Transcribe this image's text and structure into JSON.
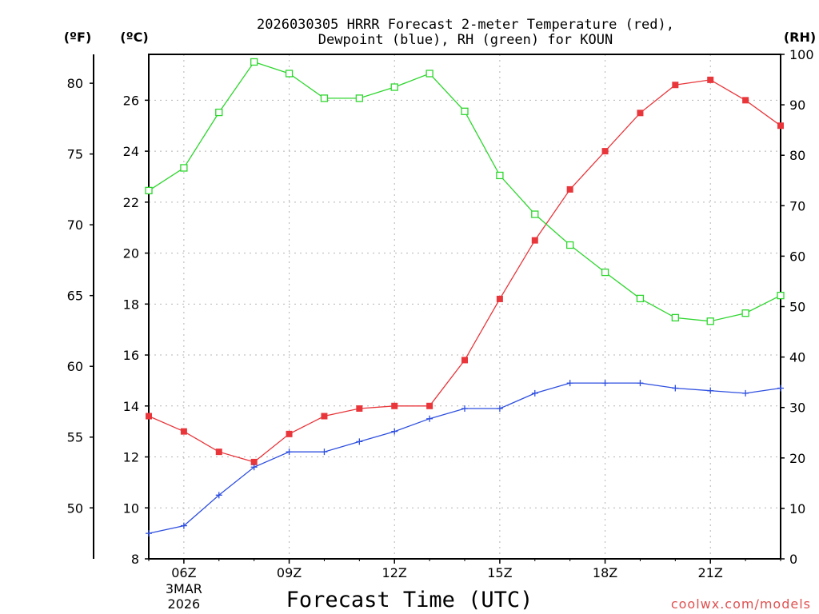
{
  "chart_data": {
    "type": "line",
    "title_line1": "2026030305 HRRR Forecast 2-meter Temperature (red),",
    "title_line2": "Dewpoint (blue), RH (green) for KOUN",
    "xlabel": "Forecast Time (UTC)",
    "credit": "coolwx.com/models",
    "units": {
      "f": "(ºF)",
      "c": "(ºC)",
      "rh": "(RH)"
    },
    "hours": [
      5,
      6,
      7,
      8,
      9,
      10,
      11,
      12,
      13,
      14,
      15,
      16,
      17,
      18,
      19,
      20,
      21,
      22,
      23
    ],
    "x_ticks": [
      {
        "hour": 6,
        "label": "06Z",
        "sub1": "3MAR",
        "sub2": "2026"
      },
      {
        "hour": 9,
        "label": "09Z"
      },
      {
        "hour": 12,
        "label": "12Z"
      },
      {
        "hour": 15,
        "label": "15Z"
      },
      {
        "hour": 18,
        "label": "18Z"
      },
      {
        "hour": 21,
        "label": "21Z"
      }
    ],
    "xlim": [
      5,
      23
    ],
    "ylim_c": [
      8,
      27.8
    ],
    "c_ticks": [
      8,
      10,
      12,
      14,
      16,
      18,
      20,
      22,
      24,
      26
    ],
    "f_ticks": [
      50,
      55,
      60,
      65,
      70,
      75,
      80
    ],
    "rh_ticks": [
      0,
      10,
      20,
      30,
      40,
      50,
      60,
      70,
      80,
      90,
      100
    ],
    "rh_range": [
      0,
      100
    ],
    "series": [
      {
        "name": "Temperature",
        "unit": "C",
        "color": "#e8363b",
        "marker": "filled-square",
        "values": [
          13.6,
          13.0,
          12.2,
          11.8,
          12.9,
          13.6,
          13.9,
          14.0,
          14.0,
          15.8,
          18.2,
          20.5,
          22.5,
          24.0,
          25.5,
          26.6,
          26.8,
          26.0,
          25.0
        ]
      },
      {
        "name": "Dewpoint",
        "unit": "C",
        "color": "#2e4fe0",
        "marker": "plus",
        "values": [
          9.0,
          9.3,
          10.5,
          11.6,
          12.2,
          12.2,
          12.6,
          13.0,
          13.5,
          13.9,
          13.9,
          14.5,
          14.9,
          14.9,
          14.9,
          14.7,
          14.6,
          14.5,
          14.7
        ]
      },
      {
        "name": "RH",
        "unit": "%",
        "color": "#2ed62e",
        "marker": "open-square",
        "values": [
          73,
          77.5,
          88.5,
          98.5,
          96.2,
          91.3,
          91.3,
          93.5,
          96.2,
          88.7,
          76.0,
          68.3,
          62.2,
          56.8,
          51.6,
          47.8,
          47.1,
          48.7,
          52.2
        ]
      }
    ]
  }
}
